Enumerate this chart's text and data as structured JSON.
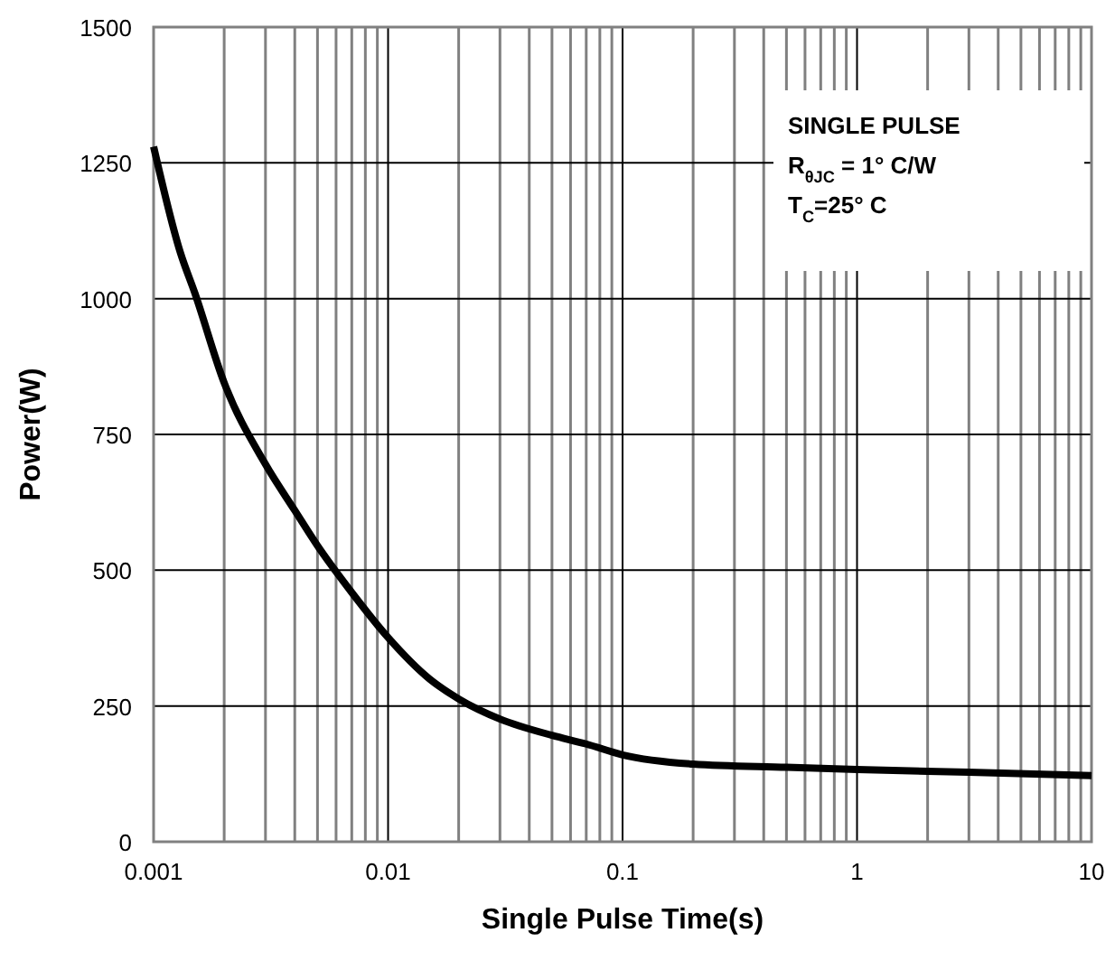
{
  "chart_data": {
    "type": "line",
    "xlabel": "Single Pulse Time(s)",
    "ylabel": "Power(W)",
    "log": "x",
    "xlim": [
      0.001,
      10
    ],
    "xticks": [
      {
        "value": 0.001,
        "label": "0.001"
      },
      {
        "value": 0.01,
        "label": "0.01"
      },
      {
        "value": 0.1,
        "label": "0.1"
      },
      1,
      10
    ],
    "ylim": [
      0,
      1500
    ],
    "yticks": [
      0,
      250,
      500,
      750,
      1000,
      1250,
      1500
    ],
    "grid": true,
    "line_style": "solid",
    "marker": "none",
    "x": [
      0.001,
      0.0013,
      0.0015,
      0.002,
      0.003,
      0.004,
      0.005,
      0.007,
      0.01,
      0.015,
      0.02,
      0.03,
      0.05,
      0.07,
      0.1,
      0.2,
      0.5,
      1,
      3,
      10
    ],
    "series": [
      {
        "color": "#000000",
        "values": [
          1280,
          1085,
          1010,
          845,
          695,
          610,
          545,
          459,
          376,
          300,
          263,
          226,
          196,
          180,
          160,
          143,
          137,
          133,
          128,
          122
        ]
      }
    ],
    "annotations": [
      "SINGLE PULSE",
      "R$_{θJC}$ = 1° C/W",
      "T$_{C}$=25° C"
    ]
  }
}
